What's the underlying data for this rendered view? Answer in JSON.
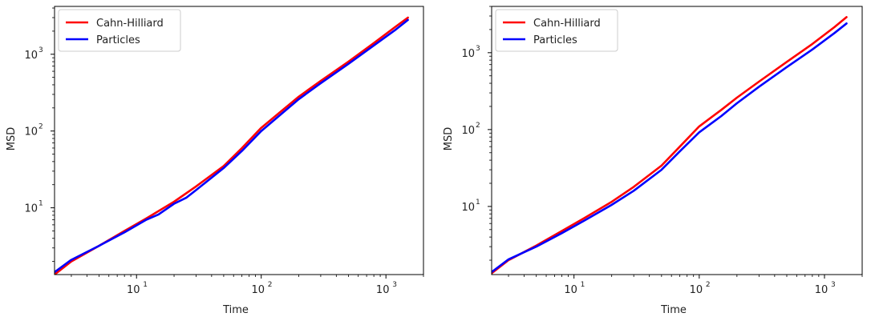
{
  "chart_data": [
    {
      "type": "line",
      "xlabel": "Time",
      "ylabel": "MSD",
      "xscale": "log",
      "yscale": "log",
      "xlim": [
        2.2,
        2000
      ],
      "ylim": [
        1.35,
        4200
      ],
      "xtick_labels": [
        "10",
        "10",
        "10"
      ],
      "xtick_exponents": [
        "1",
        "2",
        "3"
      ],
      "ytick_labels": [
        "10",
        "10",
        "10"
      ],
      "ytick_exponents": [
        "1",
        "2",
        "3"
      ],
      "grid": false,
      "legend_position": "top-left",
      "series": [
        {
          "name": "Cahn-Hilliard",
          "color": "#ff0000",
          "x": [
            2.2,
            3,
            5,
            8,
            12,
            20,
            30,
            50,
            70,
            100,
            150,
            200,
            300,
            500,
            800,
            1200,
            1500
          ],
          "y": [
            1.35,
            2.0,
            3.2,
            5.0,
            7.3,
            12,
            19,
            35,
            60,
            110,
            190,
            280,
            450,
            800,
            1400,
            2300,
            3000
          ]
        },
        {
          "name": "Particles",
          "color": "#0000ff",
          "x": [
            2.2,
            3,
            5,
            8,
            12,
            15,
            20,
            25,
            30,
            50,
            70,
            100,
            150,
            200,
            300,
            500,
            800,
            1200,
            1500
          ],
          "y": [
            1.45,
            2.1,
            3.2,
            4.8,
            7.0,
            8.2,
            11.3,
            13.5,
            17,
            33,
            55,
            100,
            175,
            260,
            420,
            750,
            1300,
            2100,
            2800
          ]
        }
      ]
    },
    {
      "type": "line",
      "xlabel": "Time",
      "ylabel": "MSD",
      "xscale": "log",
      "yscale": "log",
      "xlim": [
        2.2,
        2000
      ],
      "ylim": [
        1.3,
        4000
      ],
      "xtick_labels": [
        "10",
        "10",
        "10"
      ],
      "xtick_exponents": [
        "1",
        "2",
        "3"
      ],
      "ytick_labels": [
        "10",
        "10",
        "10"
      ],
      "ytick_exponents": [
        "1",
        "2",
        "3"
      ],
      "grid": false,
      "legend_position": "top-left",
      "series": [
        {
          "name": "Cahn-Hilliard",
          "color": "#ff0000",
          "x": [
            2.2,
            3,
            5,
            8,
            12,
            20,
            30,
            50,
            70,
            100,
            150,
            200,
            300,
            500,
            800,
            1200,
            1500
          ],
          "y": [
            1.35,
            2.0,
            3.1,
            4.8,
            7.0,
            11.5,
            18,
            34,
            60,
            110,
            180,
            260,
            420,
            760,
            1300,
            2150,
            2900
          ]
        },
        {
          "name": "Particles",
          "color": "#0000ff",
          "x": [
            2.2,
            3,
            5,
            8,
            12,
            20,
            30,
            50,
            70,
            100,
            150,
            200,
            300,
            500,
            800,
            1200,
            1500
          ],
          "y": [
            1.4,
            2.05,
            3.0,
            4.5,
            6.5,
            10.5,
            16,
            30,
            52,
            92,
            150,
            220,
            360,
            650,
            1100,
            1800,
            2400
          ]
        }
      ]
    }
  ]
}
